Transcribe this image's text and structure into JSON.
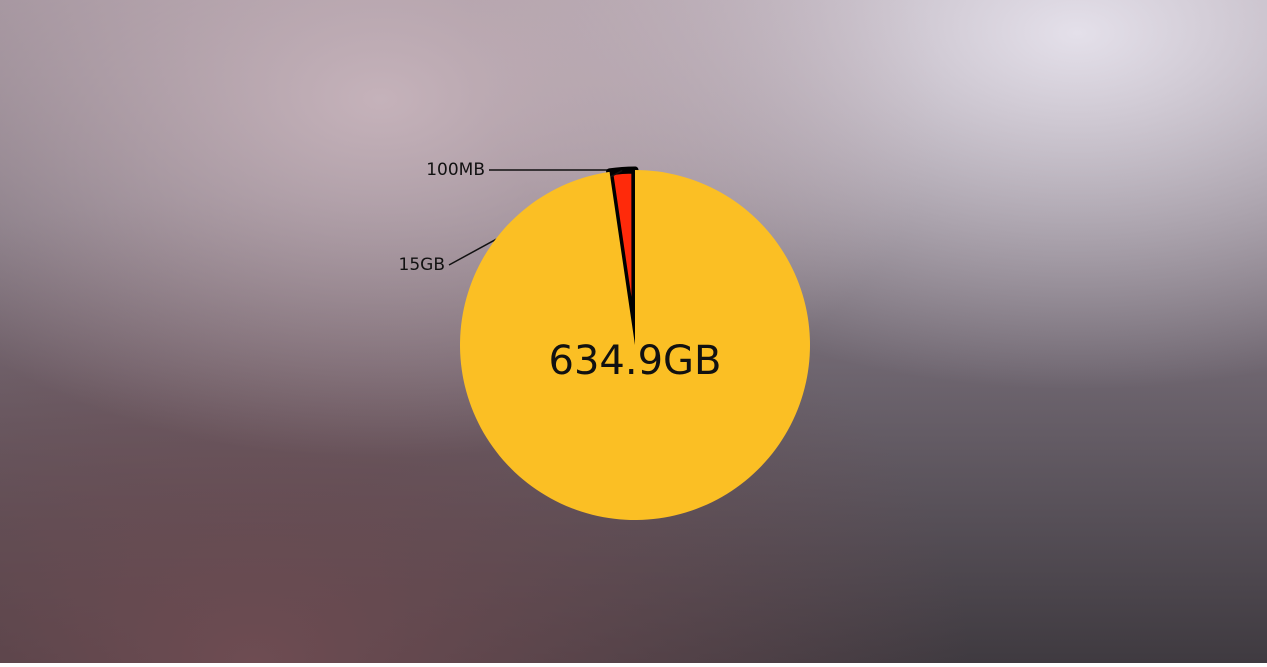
{
  "chart_data": {
    "type": "pie",
    "values": [
      634.9,
      15,
      0.1
    ],
    "value_labels": [
      "634.9GB",
      "15GB",
      "100MB"
    ],
    "colors": [
      "#fbbf24",
      "#ff2a0a",
      "#0a5cff"
    ]
  }
}
